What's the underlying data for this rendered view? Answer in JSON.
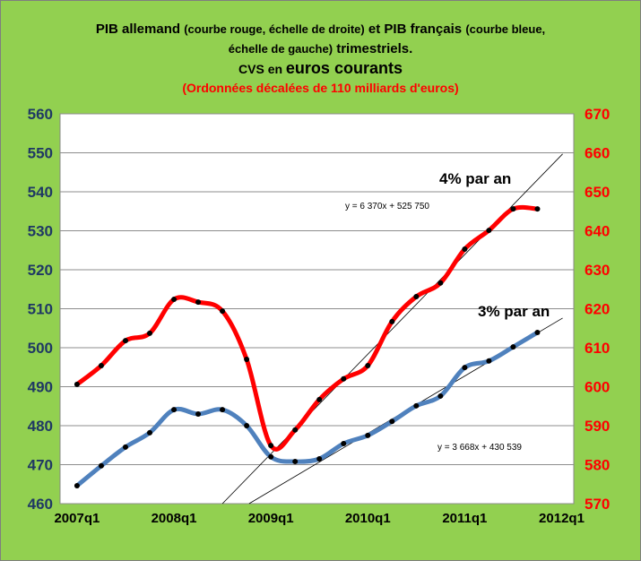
{
  "title": {
    "line1_a": "PIB allemand",
    "line1_b": "(courbe rouge, échelle de droite)",
    "line1_c": "et PIB français",
    "line1_d": "(courbe bleue,",
    "line1_e": "échelle de gauche)",
    "line1_f": "trimestriels.",
    "line2_a": "CVS en",
    "line2_b": "euros courants",
    "line3": "(Ordonnées décalées de 110 milliards d'euros)"
  },
  "chart_data": {
    "type": "line",
    "x": [
      "2007q1",
      "2007q2",
      "2007q3",
      "2007q4",
      "2008q1",
      "2008q2",
      "2008q3",
      "2008q4",
      "2009q1",
      "2009q2",
      "2009q3",
      "2009q4",
      "2010q1",
      "2010q2",
      "2010q3",
      "2010q4",
      "2011q1",
      "2011q2",
      "2011q3",
      "2011q4"
    ],
    "xticks": [
      "2007q1",
      "2008q1",
      "2009q1",
      "2010q1",
      "2011q1",
      "2012q1"
    ],
    "y_left": {
      "min": 460,
      "max": 560,
      "step": 10,
      "color": "#1f3864"
    },
    "y_right": {
      "min": 570,
      "max": 670,
      "step": 10,
      "color": "#ff0000"
    },
    "series": [
      {
        "name": "PIB français",
        "axis": "left",
        "color": "#4f81bd",
        "values": [
          464.6,
          469.7,
          474.5,
          478.2,
          484.1,
          483.0,
          484.1,
          480.0,
          472.0,
          470.8,
          471.5,
          475.4,
          477.5,
          481.1,
          485.1,
          487.6,
          494.9,
          496.6,
          500.2,
          503.9
        ]
      },
      {
        "name": "PIB allemand",
        "axis": "right",
        "color": "#ff0000",
        "values": [
          600.6,
          605.4,
          611.8,
          613.7,
          622.4,
          621.7,
          619.4,
          607.0,
          584.9,
          588.9,
          596.7,
          602.0,
          605.4,
          616.7,
          623.1,
          626.6,
          635.3,
          640.1,
          645.6,
          645.6
        ]
      }
    ],
    "trendlines": [
      {
        "label": "4% par an",
        "equation": "y = 6 370x + 525 750",
        "from": [
          6.0,
          460
        ],
        "to": [
          20.04,
          549.7
        ]
      },
      {
        "label": "3% par an",
        "equation": "y = 3 668x + 430 539",
        "from": [
          7.1,
          460
        ],
        "to": [
          20.04,
          507.6
        ]
      }
    ],
    "grid": true
  }
}
